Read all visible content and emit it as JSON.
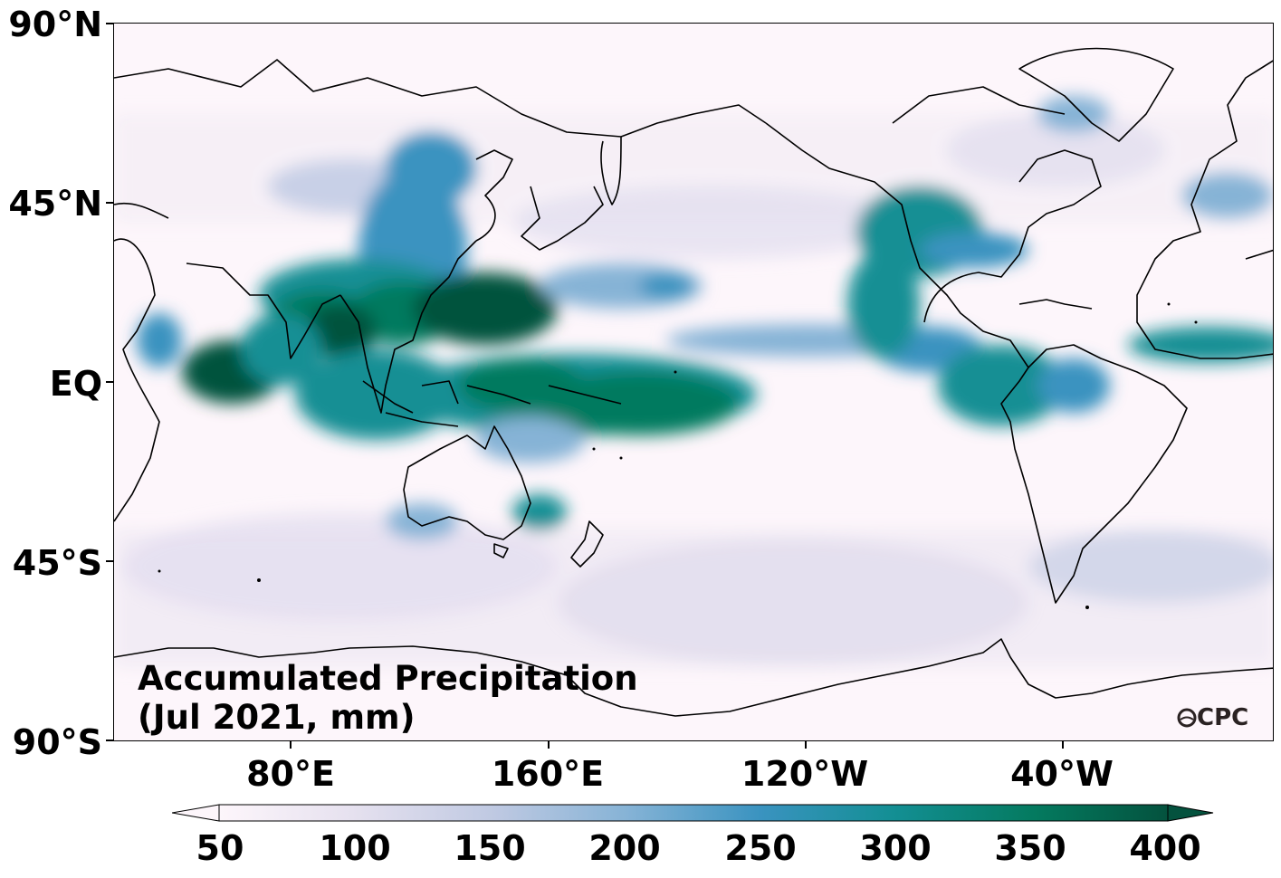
{
  "map": {
    "title_line1": "Accumulated Precipitation",
    "title_line2": "(Jul 2021, mm)",
    "logo_text": "CPC",
    "lat_labels": [
      "90°N",
      "45°N",
      "EQ",
      "45°S",
      "90°S"
    ],
    "lon_labels": [
      "80°E",
      "160°E",
      "120°W",
      "40°W"
    ],
    "colormap": [
      "#fdf6fb",
      "#e6e1ef",
      "#bfc9e2",
      "#86b3d6",
      "#3a93c0",
      "#138f94",
      "#047a5f",
      "#04523e"
    ],
    "colorbar": {
      "ticks": [
        "50",
        "100",
        "150",
        "200",
        "250",
        "300",
        "350",
        "400"
      ],
      "min": 50,
      "max": 400,
      "extend": "both"
    }
  }
}
